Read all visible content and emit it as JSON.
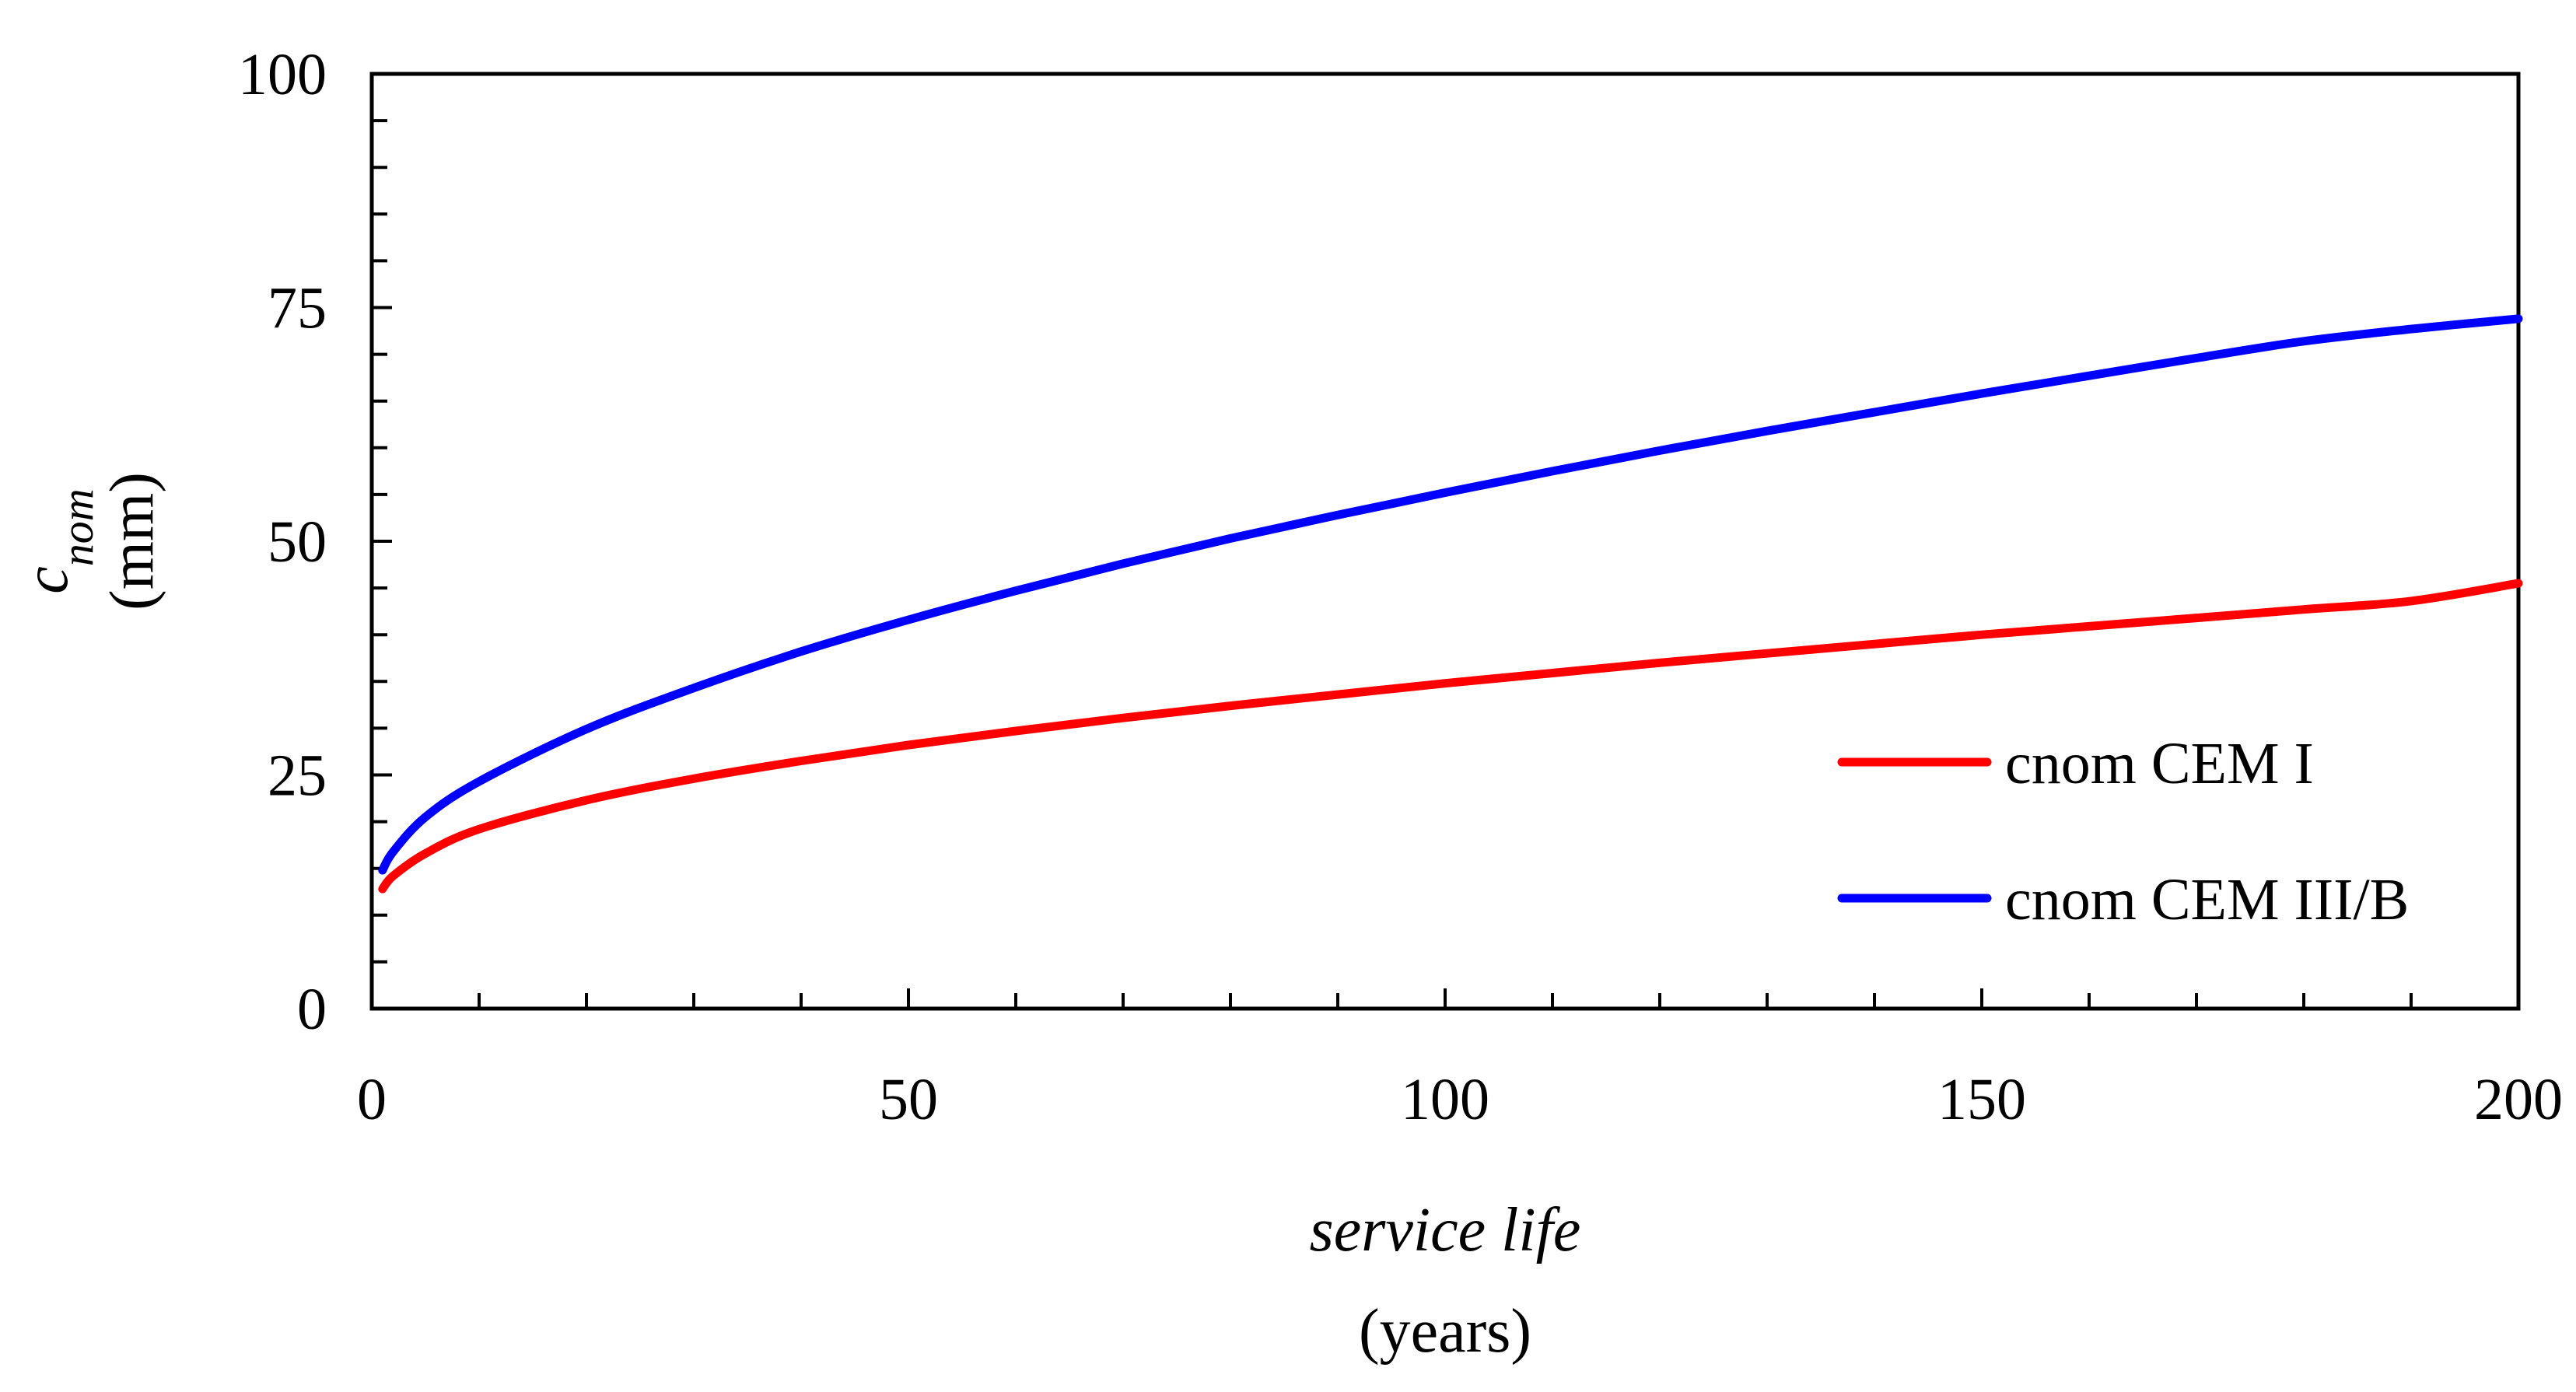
{
  "chart_data": {
    "type": "line",
    "title": "",
    "xlabel": "service life",
    "xlabel_unit": "(years)",
    "ylabel_main": "c",
    "ylabel_sub": "nom",
    "ylabel_unit": "(mm)",
    "xlim": [
      0,
      200
    ],
    "ylim": [
      0,
      100
    ],
    "x_major_ticks": [
      0,
      50,
      100,
      150,
      200
    ],
    "x_tick_labels": [
      "0",
      "50",
      "100",
      "150",
      "200"
    ],
    "x_minor_step": 10,
    "y_major_ticks": [
      0,
      25,
      50,
      75,
      100
    ],
    "y_tick_labels": [
      "0",
      "25",
      "50",
      "75",
      "100"
    ],
    "y_minor_step": 5,
    "grid": false,
    "legend_position": "lower-right",
    "series": [
      {
        "name": "cnom CEM I",
        "color": "#ff0000",
        "x": [
          1,
          2,
          5,
          10,
          20,
          30,
          40,
          50,
          60,
          70,
          80,
          90,
          100,
          110,
          120,
          130,
          140,
          150,
          160,
          170,
          180,
          190,
          200
        ],
        "y": [
          12.8,
          14.2,
          16.6,
          19.2,
          22.3,
          24.6,
          26.5,
          28.2,
          29.7,
          31.1,
          32.4,
          33.6,
          34.8,
          35.9,
          37.0,
          38.0,
          39.0,
          40.0,
          40.9,
          41.8,
          42.7,
          43.6,
          45.5
        ]
      },
      {
        "name": "cnom CEM III/B",
        "color": "#0000ff",
        "x": [
          1,
          2,
          5,
          10,
          20,
          30,
          40,
          50,
          60,
          70,
          80,
          90,
          100,
          110,
          120,
          130,
          140,
          150,
          160,
          170,
          180,
          190,
          200
        ],
        "y": [
          14.8,
          16.8,
          20.5,
          24.3,
          29.9,
          34.3,
          38.2,
          41.6,
          44.7,
          47.6,
          50.3,
          52.8,
          55.2,
          57.5,
          59.7,
          61.8,
          63.8,
          65.8,
          67.7,
          69.6,
          71.4,
          72.7,
          73.8
        ]
      }
    ]
  }
}
